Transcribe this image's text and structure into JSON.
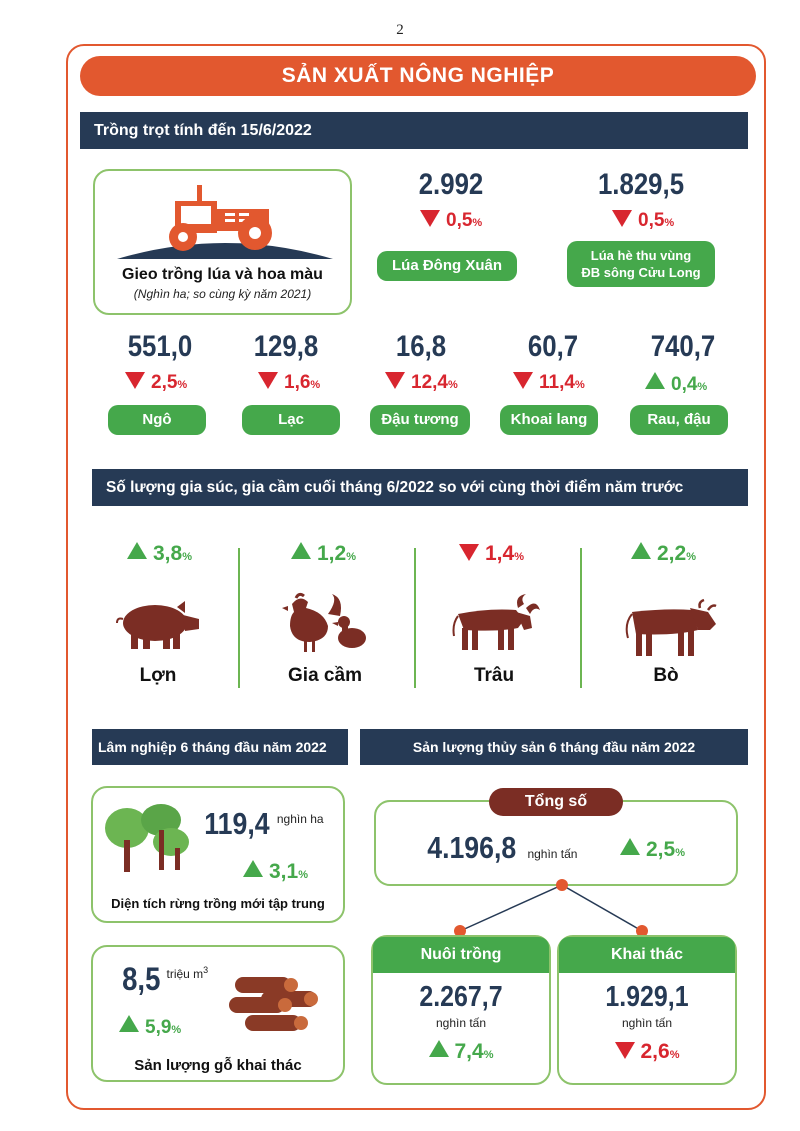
{
  "page_number": "2",
  "title": "SẢN XUẤT NÔNG NGHIỆP",
  "colors": {
    "orange": "#e2582f",
    "navy": "#263a55",
    "green": "#45a84b",
    "red": "#d8262f",
    "brown": "#7b2d24"
  },
  "crops": {
    "heading": "Trồng trọt tính đến 15/6/2022",
    "intro_title": "Gieo trồng lúa và hoa màu",
    "intro_sub": "(Nghìn ha; so cùng kỳ năm 2021)",
    "dong_xuan": {
      "value": "2.992",
      "change": "0,5",
      "unit": "%",
      "label": "Lúa Đông Xuân",
      "direction": "down"
    },
    "he_thu": {
      "value": "1.829,5",
      "change": "0,5",
      "unit": "%",
      "label_line1": "Lúa hè thu vùng",
      "label_line2": "ĐB sông Cửu Long",
      "direction": "down"
    },
    "items": [
      {
        "value": "551,0",
        "change": "2,5",
        "unit": "%",
        "label": "Ngô",
        "direction": "down"
      },
      {
        "value": "129,8",
        "change": "1,6",
        "unit": "%",
        "label": "Lạc",
        "direction": "down"
      },
      {
        "value": "16,8",
        "change": "12,4",
        "unit": "%",
        "label": "Đậu tương",
        "direction": "down"
      },
      {
        "value": "60,7",
        "change": "11,4",
        "unit": "%",
        "label": "Khoai lang",
        "direction": "down"
      },
      {
        "value": "740,7",
        "change": "0,4",
        "unit": "%",
        "label": "Rau, đậu",
        "direction": "up"
      }
    ]
  },
  "livestock": {
    "heading": "Số lượng gia súc, gia cầm cuối tháng 6/2022 so với cùng thời điểm năm trước",
    "items": [
      {
        "change": "3,8",
        "unit": "%",
        "label": "Lợn",
        "direction": "up",
        "icon": "pig-icon"
      },
      {
        "change": "1,2",
        "unit": "%",
        "label": "Gia cầm",
        "direction": "up",
        "icon": "poultry-icon"
      },
      {
        "change": "1,4",
        "unit": "%",
        "label": "Trâu",
        "direction": "down",
        "icon": "buffalo-icon"
      },
      {
        "change": "2,2",
        "unit": "%",
        "label": "Bò",
        "direction": "up",
        "icon": "cow-icon"
      }
    ]
  },
  "forestry": {
    "heading": "Lâm nghiệp 6 tháng đầu năm 2022",
    "planted": {
      "value": "119,4",
      "unit": "nghìn ha",
      "change": "3,1",
      "pct": "%",
      "label": "Diện tích rừng trồng mới tập trung",
      "direction": "up"
    },
    "timber": {
      "value": "8,5",
      "unit": "triệu m",
      "unit_sup": "3",
      "change": "5,9",
      "pct": "%",
      "label": "Sản lượng gỗ khai thác",
      "direction": "up"
    }
  },
  "fishery": {
    "heading": "Sản lượng thủy sản 6 tháng đầu năm 2022",
    "total": {
      "label": "Tổng số",
      "value": "4.196,8",
      "unit": "nghìn tấn",
      "change": "2,5",
      "pct": "%",
      "direction": "up"
    },
    "farmed": {
      "label": "Nuôi trồng",
      "value": "2.267,7",
      "unit": "nghìn tấn",
      "change": "7,4",
      "pct": "%",
      "direction": "up"
    },
    "caught": {
      "label": "Khai thác",
      "value": "1.929,1",
      "unit": "nghìn tấn",
      "change": "2,6",
      "pct": "%",
      "direction": "down"
    }
  }
}
